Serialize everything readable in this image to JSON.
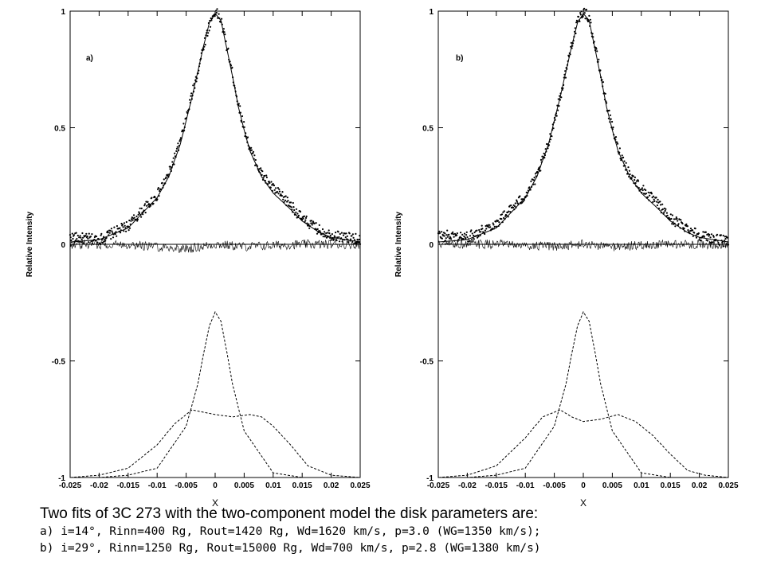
{
  "caption": {
    "title": "Two fits of 3C 273 with the two-component model the disk parameters are:",
    "line_a": "a) i=14°, Rinn=400 Rg, Rout=1420 Rg, Wd=1620 km/s, p=3.0 (WG=1350 km/s);",
    "line_b": "b) i=29°, Rinn=1250 Rg, Rout=15000 Rg, Wd=700 km/s, p=2.8 (WG=1380 km/s)"
  },
  "chart_data": [
    {
      "type": "line",
      "panel_label": "a)",
      "xlabel": "X",
      "ylabel": "Relative Intensity",
      "xlim": [
        -0.025,
        0.025
      ],
      "ylim": [
        -1,
        1
      ],
      "xticks": [
        "-0.025",
        "-0.02",
        "-0.015",
        "-0.01",
        "-0.005",
        "0",
        "0.005",
        "0.01",
        "0.015",
        "0.02",
        "0.025"
      ],
      "yticks": [
        "1",
        "0.5",
        "0",
        "-0.5",
        "-1"
      ],
      "grid": false,
      "series": [
        {
          "style": "points",
          "x": [
            -0.025,
            -0.02,
            -0.015,
            -0.01,
            -0.008,
            -0.006,
            -0.004,
            -0.003,
            -0.002,
            -0.001,
            0,
            0.001,
            0.002,
            0.003,
            0.004,
            0.005,
            0.006,
            0.008,
            0.01,
            0.013,
            0.015,
            0.018,
            0.02,
            0.025
          ],
          "y": [
            0.03,
            0.02,
            0.08,
            0.21,
            0.3,
            0.44,
            0.64,
            0.74,
            0.85,
            0.94,
            1.0,
            0.96,
            0.85,
            0.73,
            0.6,
            0.5,
            0.41,
            0.3,
            0.24,
            0.17,
            0.11,
            0.06,
            0.04,
            0.02
          ]
        },
        {
          "style": "solid",
          "x": [
            -0.025,
            -0.02,
            -0.015,
            -0.01,
            -0.008,
            -0.006,
            -0.004,
            -0.003,
            -0.002,
            -0.001,
            0,
            0.001,
            0.002,
            0.003,
            0.004,
            0.005,
            0.006,
            0.008,
            0.01,
            0.013,
            0.015,
            0.018,
            0.02,
            0.025
          ],
          "y": [
            0.01,
            0.02,
            0.07,
            0.2,
            0.29,
            0.43,
            0.63,
            0.74,
            0.85,
            0.95,
            0.99,
            0.96,
            0.84,
            0.72,
            0.59,
            0.49,
            0.4,
            0.29,
            0.22,
            0.15,
            0.1,
            0.05,
            0.03,
            0.01
          ]
        },
        {
          "style": "residual",
          "x": [
            -0.025,
            -0.015,
            -0.005,
            0,
            0.005,
            0.015,
            0.025
          ],
          "y": [
            0,
            0,
            -0.02,
            0,
            -0.01,
            0,
            0
          ]
        },
        {
          "style": "dashed",
          "x": [
            -0.025,
            -0.02,
            -0.015,
            -0.01,
            -0.005,
            -0.003,
            -0.002,
            -0.001,
            0,
            0.001,
            0.002,
            0.003,
            0.005,
            0.01,
            0.015,
            0.02,
            0.025
          ],
          "y": [
            -1,
            -1,
            -0.99,
            -0.96,
            -0.78,
            -0.6,
            -0.47,
            -0.35,
            -0.29,
            -0.33,
            -0.46,
            -0.6,
            -0.8,
            -0.98,
            -1,
            -1,
            -1
          ]
        },
        {
          "style": "dashed",
          "x": [
            -0.025,
            -0.02,
            -0.015,
            -0.01,
            -0.007,
            -0.004,
            -0.002,
            0,
            0.003,
            0.006,
            0.008,
            0.01,
            0.013,
            0.016,
            0.02,
            0.025
          ],
          "y": [
            -1,
            -0.99,
            -0.96,
            -0.86,
            -0.77,
            -0.71,
            -0.72,
            -0.73,
            -0.74,
            -0.73,
            -0.74,
            -0.78,
            -0.86,
            -0.95,
            -0.99,
            -1
          ]
        }
      ]
    },
    {
      "type": "line",
      "panel_label": "b)",
      "xlabel": "X",
      "ylabel": "Relative Intensity",
      "xlim": [
        -0.025,
        0.025
      ],
      "ylim": [
        -1,
        1
      ],
      "xticks": [
        "-0.025",
        "-0.02",
        "-0.015",
        "-0.01",
        "-0.005",
        "0",
        "0.005",
        "0.01",
        "0.015",
        "0.02",
        "0.025"
      ],
      "yticks": [
        "1",
        "0.5",
        "0",
        "-0.5",
        "-1"
      ],
      "grid": false,
      "series": [
        {
          "style": "points",
          "x": [
            -0.025,
            -0.02,
            -0.015,
            -0.01,
            -0.008,
            -0.006,
            -0.004,
            -0.003,
            -0.002,
            -0.001,
            0,
            0.001,
            0.002,
            0.003,
            0.004,
            0.005,
            0.006,
            0.008,
            0.01,
            0.013,
            0.015,
            0.018,
            0.02,
            0.025
          ],
          "y": [
            0.04,
            0.03,
            0.09,
            0.21,
            0.29,
            0.43,
            0.63,
            0.74,
            0.86,
            0.95,
            1.0,
            0.97,
            0.85,
            0.73,
            0.6,
            0.5,
            0.41,
            0.3,
            0.24,
            0.17,
            0.11,
            0.07,
            0.04,
            0.01
          ]
        },
        {
          "style": "solid",
          "x": [
            -0.025,
            -0.02,
            -0.015,
            -0.01,
            -0.008,
            -0.006,
            -0.004,
            -0.003,
            -0.002,
            -0.001,
            0,
            0.001,
            0.002,
            0.003,
            0.004,
            0.005,
            0.006,
            0.008,
            0.01,
            0.013,
            0.015,
            0.018,
            0.02,
            0.025
          ],
          "y": [
            0.01,
            0.02,
            0.07,
            0.2,
            0.29,
            0.43,
            0.63,
            0.74,
            0.85,
            0.95,
            0.99,
            0.96,
            0.84,
            0.72,
            0.59,
            0.49,
            0.4,
            0.29,
            0.22,
            0.15,
            0.1,
            0.05,
            0.03,
            0.01
          ]
        },
        {
          "style": "residual",
          "x": [
            -0.025,
            -0.015,
            -0.005,
            0,
            0.005,
            0.015,
            0.025
          ],
          "y": [
            0,
            0,
            -0.01,
            0,
            -0.01,
            0,
            0
          ]
        },
        {
          "style": "dashed",
          "x": [
            -0.025,
            -0.02,
            -0.015,
            -0.01,
            -0.005,
            -0.003,
            -0.002,
            -0.001,
            0,
            0.001,
            0.002,
            0.003,
            0.005,
            0.01,
            0.015,
            0.02,
            0.025
          ],
          "y": [
            -1,
            -1,
            -0.99,
            -0.96,
            -0.78,
            -0.6,
            -0.47,
            -0.35,
            -0.29,
            -0.33,
            -0.46,
            -0.6,
            -0.8,
            -0.98,
            -1,
            -1,
            -1
          ]
        },
        {
          "style": "dashed",
          "x": [
            -0.025,
            -0.02,
            -0.015,
            -0.01,
            -0.007,
            -0.004,
            -0.002,
            0,
            0.003,
            0.006,
            0.009,
            0.012,
            0.015,
            0.018,
            0.021,
            0.025
          ],
          "y": [
            -1,
            -0.99,
            -0.95,
            -0.83,
            -0.74,
            -0.71,
            -0.74,
            -0.76,
            -0.75,
            -0.73,
            -0.76,
            -0.82,
            -0.9,
            -0.97,
            -0.99,
            -1
          ]
        }
      ]
    }
  ]
}
